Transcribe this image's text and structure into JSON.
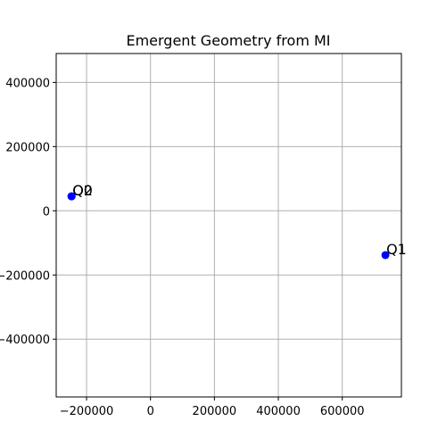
{
  "chart_data": {
    "type": "scatter",
    "title": "Emergent Geometry from MI",
    "xlabel": "",
    "ylabel": "",
    "xlim": [
      -295000,
      785000
    ],
    "ylim": [
      -580000,
      490000
    ],
    "xticks": [
      -200000,
      0,
      200000,
      400000,
      600000
    ],
    "yticks": [
      -400000,
      -200000,
      0,
      200000,
      400000
    ],
    "xtick_labels": [
      "−200000",
      "0",
      "200000",
      "400000",
      "600000"
    ],
    "ytick_labels": [
      "−400000",
      "−200000",
      "0",
      "200000",
      "400000"
    ],
    "grid": true,
    "marker_color": "#0000ff",
    "points": [
      {
        "label": "Q0",
        "x": -247000,
        "y": 45000
      },
      {
        "label": "Q2",
        "x": -247000,
        "y": 45000
      },
      {
        "label": "Q1",
        "x": 735000,
        "y": -138000
      }
    ]
  }
}
